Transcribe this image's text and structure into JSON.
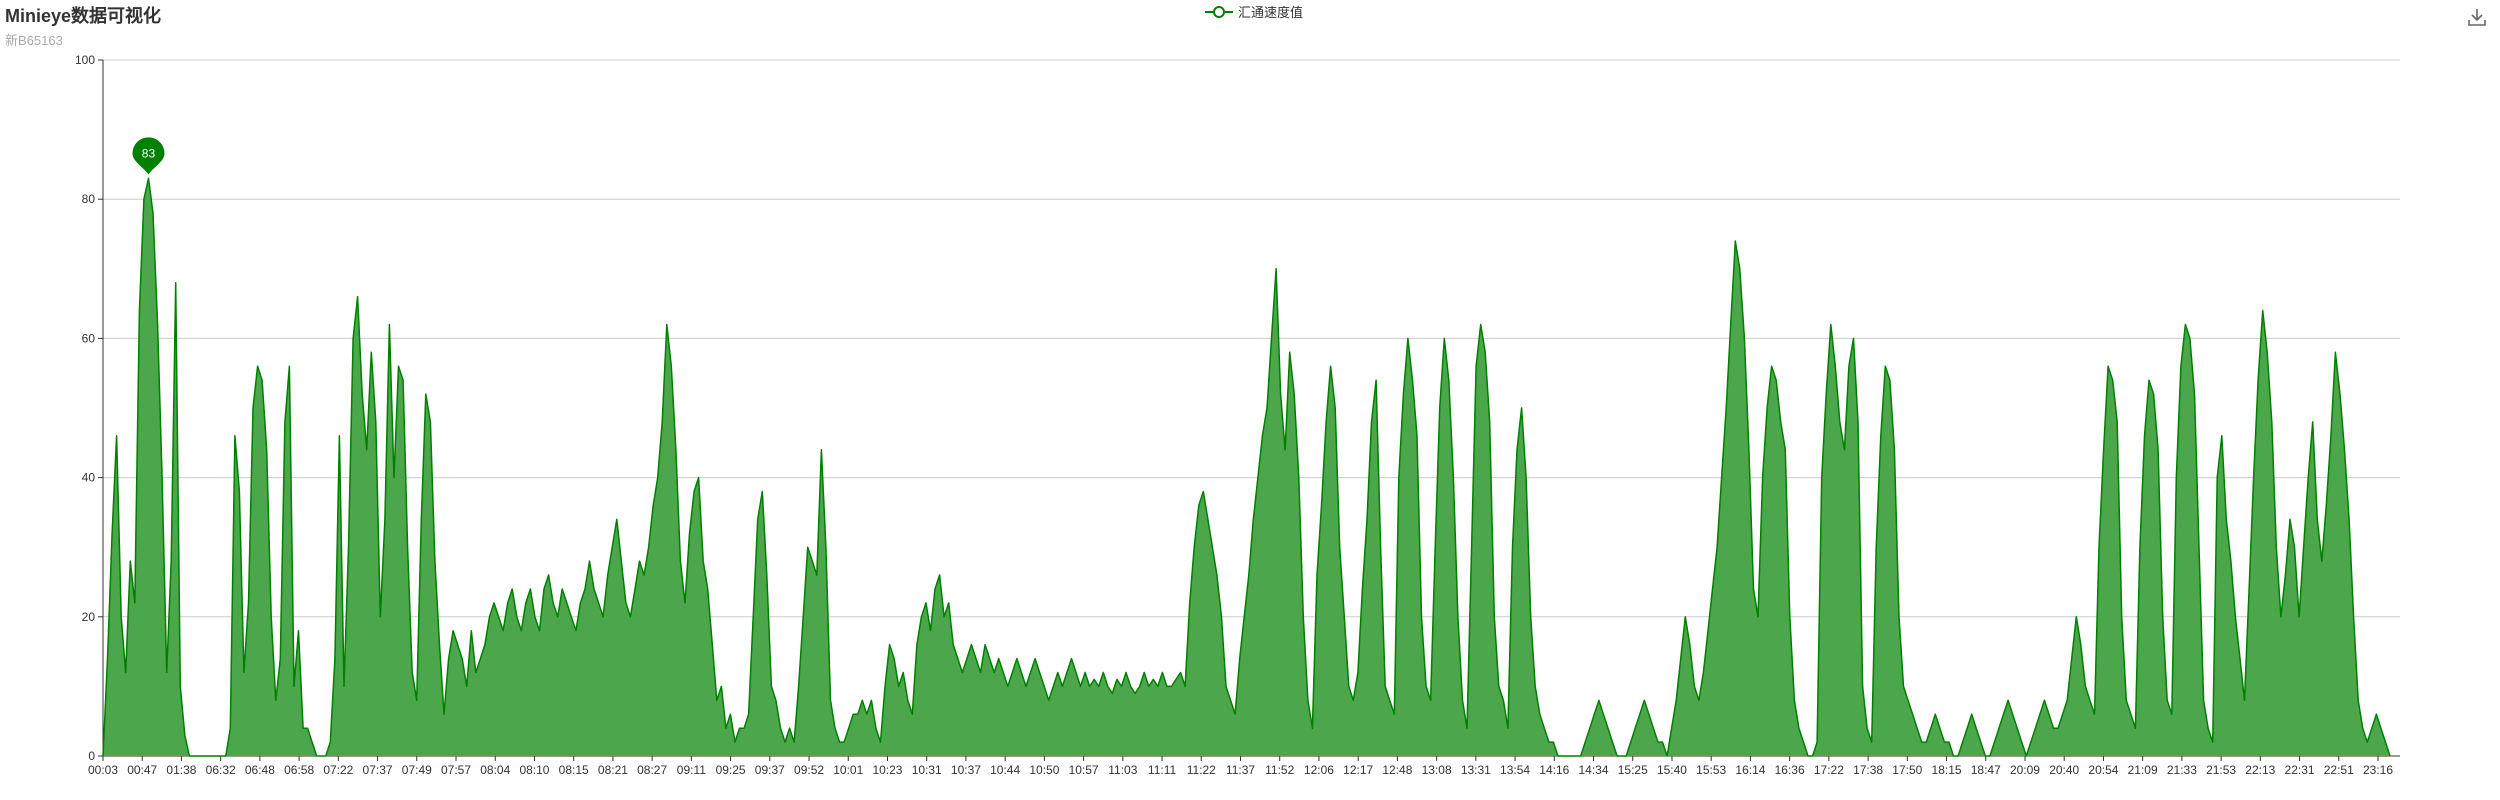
{
  "header": {
    "title": "Minieye数据可视化",
    "subtitle": "新B65163"
  },
  "toolbox": {
    "icon": "download-icon"
  },
  "colors": {
    "series": "#008000",
    "fill": "#4ca64c",
    "grid": "#cccccc",
    "axis": "#333333",
    "marker": "#008000"
  },
  "chart_data": {
    "type": "area",
    "title": "Minieye数据可视化",
    "subtitle": "新B65163",
    "xlabel": "",
    "ylabel": "",
    "ylim": [
      0,
      100
    ],
    "y_ticks": [
      0,
      20,
      40,
      60,
      80,
      100
    ],
    "legend": {
      "position": "top-center",
      "entries": [
        "汇通速度值"
      ]
    },
    "grid": true,
    "x_ticks": [
      "00:03",
      "00:47",
      "01:38",
      "06:32",
      "06:48",
      "06:58",
      "07:22",
      "07:37",
      "07:49",
      "07:57",
      "08:04",
      "08:10",
      "08:15",
      "08:21",
      "08:27",
      "09:11",
      "09:25",
      "09:37",
      "09:52",
      "10:01",
      "10:23",
      "10:31",
      "10:37",
      "10:44",
      "10:50",
      "10:57",
      "11:03",
      "11:11",
      "11:22",
      "11:37",
      "11:52",
      "12:06",
      "12:17",
      "12:48",
      "13:08",
      "13:31",
      "13:54",
      "14:16",
      "14:34",
      "15:25",
      "15:40",
      "15:53",
      "16:14",
      "16:36",
      "17:22",
      "17:38",
      "17:50",
      "18:15",
      "18:47",
      "20:09",
      "20:40",
      "20:54",
      "21:09",
      "21:33",
      "21:53",
      "22:13",
      "22:31",
      "22:51",
      "23:16"
    ],
    "series": [
      {
        "name": "汇通速度值",
        "values": [
          0,
          14,
          32,
          46,
          20,
          12,
          28,
          22,
          64,
          80,
          83,
          78,
          62,
          40,
          12,
          28,
          68,
          10,
          3,
          0,
          0,
          0,
          0,
          0,
          0,
          0,
          0,
          0,
          4,
          46,
          38,
          12,
          22,
          50,
          56,
          54,
          44,
          20,
          8,
          14,
          48,
          56,
          10,
          18,
          4,
          4,
          2,
          0,
          0,
          0,
          2,
          14,
          46,
          10,
          30,
          60,
          66,
          52,
          44,
          58,
          48,
          20,
          34,
          62,
          40,
          56,
          54,
          30,
          12,
          8,
          34,
          52,
          48,
          28,
          16,
          6,
          14,
          18,
          16,
          14,
          10,
          18,
          12,
          14,
          16,
          20,
          22,
          20,
          18,
          22,
          24,
          20,
          18,
          22,
          24,
          20,
          18,
          24,
          26,
          22,
          20,
          24,
          22,
          20,
          18,
          22,
          24,
          28,
          24,
          22,
          20,
          26,
          30,
          34,
          28,
          22,
          20,
          24,
          28,
          26,
          30,
          36,
          40,
          48,
          62,
          56,
          44,
          28,
          22,
          32,
          38,
          40,
          28,
          24,
          16,
          8,
          10,
          4,
          6,
          2,
          4,
          4,
          6,
          20,
          34,
          38,
          26,
          10,
          8,
          4,
          2,
          4,
          2,
          10,
          20,
          30,
          28,
          26,
          44,
          30,
          8,
          4,
          2,
          2,
          4,
          6,
          6,
          8,
          6,
          8,
          4,
          2,
          10,
          16,
          14,
          10,
          12,
          8,
          6,
          16,
          20,
          22,
          18,
          24,
          26,
          20,
          22,
          16,
          14,
          12,
          14,
          16,
          14,
          12,
          16,
          14,
          12,
          14,
          12,
          10,
          12,
          14,
          12,
          10,
          12,
          14,
          12,
          10,
          8,
          10,
          12,
          10,
          12,
          14,
          12,
          10,
          12,
          10,
          11,
          10,
          12,
          10,
          9,
          11,
          10,
          12,
          10,
          9,
          10,
          12,
          10,
          11,
          10,
          12,
          10,
          10,
          11,
          12,
          10,
          22,
          30,
          36,
          38,
          34,
          30,
          26,
          20,
          10,
          8,
          6,
          14,
          20,
          26,
          34,
          40,
          46,
          50,
          60,
          70,
          52,
          44,
          58,
          52,
          40,
          20,
          8,
          4,
          26,
          36,
          48,
          56,
          50,
          30,
          20,
          10,
          8,
          12,
          24,
          34,
          48,
          54,
          30,
          10,
          8,
          6,
          40,
          52,
          60,
          54,
          46,
          20,
          10,
          8,
          30,
          50,
          60,
          54,
          40,
          20,
          8,
          4,
          30,
          56,
          62,
          58,
          48,
          20,
          10,
          8,
          4,
          30,
          44,
          50,
          40,
          20,
          10,
          6,
          4,
          2,
          2,
          0,
          0,
          0,
          0,
          0,
          0,
          2,
          4,
          6,
          8,
          6,
          4,
          2,
          0,
          0,
          0,
          2,
          4,
          6,
          8,
          6,
          4,
          2,
          2,
          0,
          4,
          8,
          14,
          20,
          16,
          10,
          8,
          12,
          18,
          24,
          30,
          40,
          50,
          62,
          74,
          70,
          60,
          44,
          24,
          20,
          40,
          50,
          56,
          54,
          48,
          44,
          20,
          8,
          4,
          2,
          0,
          0,
          2,
          40,
          52,
          62,
          56,
          48,
          44,
          56,
          60,
          48,
          10,
          4,
          2,
          30,
          46,
          56,
          54,
          44,
          20,
          10,
          8,
          6,
          4,
          2,
          2,
          4,
          6,
          4,
          2,
          2,
          0,
          0,
          2,
          4,
          6,
          4,
          2,
          0,
          0,
          2,
          4,
          6,
          8,
          6,
          4,
          2,
          0,
          2,
          4,
          6,
          8,
          6,
          4,
          4,
          6,
          8,
          14,
          20,
          16,
          10,
          8,
          6,
          30,
          44,
          56,
          54,
          48,
          20,
          8,
          6,
          4,
          30,
          46,
          54,
          52,
          44,
          20,
          8,
          6,
          40,
          56,
          62,
          60,
          52,
          30,
          8,
          4,
          2,
          40,
          46,
          34,
          28,
          20,
          14,
          8,
          24,
          40,
          54,
          64,
          58,
          48,
          30,
          20,
          26,
          34,
          30,
          20,
          30,
          40,
          48,
          34,
          28,
          36,
          46,
          58,
          52,
          44,
          34,
          20,
          8,
          4,
          2,
          4,
          6,
          4,
          2,
          0
        ]
      }
    ],
    "markers": [
      {
        "label": "83",
        "type": "max"
      }
    ]
  }
}
